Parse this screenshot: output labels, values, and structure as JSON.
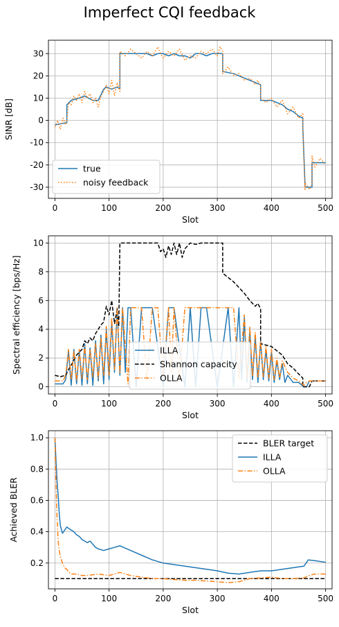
{
  "title": "Imperfect CQI feedback",
  "chart_data": [
    {
      "type": "line",
      "xlabel": "Slot",
      "ylabel": "SINR [dB]",
      "xlim": [
        -12,
        512
      ],
      "ylim": [
        -35,
        36
      ],
      "xticks": [
        0,
        100,
        200,
        300,
        400,
        500
      ],
      "yticks": [
        -30,
        -20,
        -10,
        0,
        10,
        20,
        30
      ],
      "grid": true,
      "legend": "lower-left",
      "series": [
        {
          "name": "true",
          "color": "#1f77b4",
          "style": "solid",
          "x": [
            0,
            22,
            22,
            30,
            45,
            55,
            62,
            70,
            80,
            90,
            95,
            105,
            115,
            120,
            120,
            140,
            150,
            160,
            170,
            180,
            190,
            200,
            210,
            220,
            230,
            240,
            250,
            260,
            270,
            280,
            290,
            300,
            310,
            310,
            330,
            350,
            370,
            380,
            380,
            400,
            420,
            430,
            440,
            450,
            458,
            458,
            462,
            462,
            475,
            475,
            500
          ],
          "y": [
            -2,
            -1,
            7,
            9,
            10,
            11,
            10,
            9,
            9,
            14,
            15,
            14,
            15,
            14,
            30,
            30,
            30,
            30,
            30,
            29,
            30,
            30,
            29,
            30,
            29,
            29,
            28,
            30,
            30,
            29,
            30,
            30,
            30,
            22,
            21,
            19,
            17,
            16,
            9,
            9,
            7,
            5,
            4,
            2,
            1,
            -3,
            -29,
            -30,
            -30,
            -19,
            -19
          ]
        },
        {
          "name": "noisy feedback",
          "color": "#ff7f0e",
          "style": "dotted",
          "x": [
            0,
            5,
            10,
            15,
            20,
            22,
            25,
            30,
            35,
            40,
            45,
            50,
            55,
            60,
            65,
            70,
            75,
            80,
            85,
            90,
            95,
            100,
            105,
            110,
            115,
            120,
            120,
            130,
            140,
            150,
            160,
            170,
            180,
            190,
            195,
            200,
            210,
            220,
            230,
            240,
            250,
            260,
            270,
            280,
            290,
            300,
            305,
            310,
            310,
            320,
            330,
            340,
            350,
            360,
            370,
            375,
            380,
            380,
            390,
            400,
            410,
            420,
            430,
            440,
            450,
            458,
            458,
            462,
            462,
            470,
            475,
            475,
            480,
            490,
            500
          ],
          "y": [
            -3,
            0,
            -4,
            1,
            -2,
            0,
            8,
            7,
            11,
            9,
            12,
            8,
            13,
            10,
            12,
            8,
            10,
            6,
            11,
            13,
            16,
            12,
            18,
            11,
            17,
            13,
            31,
            29,
            32,
            30,
            28,
            31,
            29,
            33,
            30,
            28,
            31,
            29,
            32,
            27,
            29,
            28,
            31,
            30,
            32,
            29,
            33,
            31,
            21,
            24,
            20,
            21,
            18,
            19,
            16,
            18,
            15,
            10,
            8,
            10,
            6,
            9,
            3,
            6,
            1,
            3,
            -4,
            -31,
            -28,
            -31,
            -29,
            -16,
            -21,
            -17,
            -20
          ]
        }
      ]
    },
    {
      "type": "line",
      "xlabel": "Slot",
      "ylabel": "Spectral efficiency [bps/Hz]",
      "xlim": [
        -12,
        512
      ],
      "ylim": [
        -0.5,
        10.5
      ],
      "xticks": [
        0,
        100,
        200,
        300,
        400,
        500
      ],
      "yticks": [
        0,
        2,
        4,
        6,
        8,
        10
      ],
      "grid": true,
      "legend": "lower-center",
      "series": [
        {
          "name": "ILLA",
          "color": "#1f77b4",
          "style": "solid",
          "x": [
            0,
            15,
            20,
            25,
            30,
            35,
            40,
            45,
            50,
            55,
            60,
            65,
            70,
            75,
            80,
            85,
            90,
            95,
            100,
            105,
            110,
            115,
            120,
            125,
            130,
            135,
            140,
            150,
            160,
            180,
            200,
            210,
            220,
            240,
            250,
            260,
            270,
            280,
            300,
            320,
            330,
            340,
            345,
            350,
            355,
            360,
            365,
            370,
            375,
            380,
            385,
            390,
            395,
            400,
            405,
            410,
            415,
            420,
            425,
            430,
            440,
            450,
            460,
            465,
            470,
            480,
            500
          ],
          "y": [
            0.2,
            0.2,
            0.5,
            2.5,
            0.1,
            2.6,
            0.2,
            2.5,
            0.1,
            3.0,
            0.2,
            2.7,
            0.1,
            3.2,
            0.4,
            3.6,
            0.2,
            4.0,
            0.5,
            4.5,
            1.0,
            5.5,
            0.8,
            5.5,
            1.0,
            5.5,
            5.5,
            0.0,
            5.5,
            5.5,
            0.0,
            5.5,
            5.5,
            0.0,
            5.5,
            0.0,
            5.5,
            5.5,
            0.0,
            5.5,
            0.0,
            5.5,
            0.5,
            4.8,
            0.3,
            3.8,
            0.5,
            3.5,
            0.3,
            3.2,
            0.5,
            2.6,
            0.4,
            2.4,
            0.3,
            1.8,
            0.5,
            1.6,
            0.3,
            0.8,
            0.3,
            0.3,
            0.0,
            0.0,
            0.4,
            0.4,
            0.4
          ]
        },
        {
          "name": "Shannon capacity",
          "color": "#000000",
          "style": "dashed",
          "x": [
            0,
            10,
            20,
            25,
            30,
            40,
            50,
            55,
            60,
            65,
            70,
            75,
            80,
            85,
            90,
            95,
            100,
            105,
            110,
            115,
            118,
            120,
            140,
            160,
            180,
            190,
            195,
            200,
            205,
            210,
            215,
            220,
            225,
            230,
            235,
            240,
            250,
            260,
            270,
            280,
            290,
            300,
            310,
            310,
            330,
            350,
            360,
            370,
            375,
            380,
            380,
            400,
            410,
            420,
            430,
            440,
            450,
            458,
            458,
            470,
            475,
            500
          ],
          "y": [
            0.8,
            0.7,
            0.8,
            1.2,
            1.5,
            2.2,
            2.6,
            3.2,
            3.0,
            3.4,
            3.2,
            3.7,
            4.0,
            4.3,
            4.5,
            5.6,
            5.0,
            6.0,
            4.4,
            5.4,
            4.2,
            10,
            10,
            10,
            10,
            10,
            9.4,
            9.6,
            9.0,
            9.8,
            9.2,
            10,
            9.2,
            10,
            9.0,
            9.6,
            10,
            9.9,
            10,
            10,
            10,
            10,
            10,
            7.9,
            7.3,
            6.5,
            6.0,
            5.6,
            5.8,
            5.4,
            3.0,
            2.8,
            2.5,
            2.2,
            1.6,
            1.3,
            0.9,
            0.6,
            0.0,
            0.0,
            0.4,
            0.4
          ]
        },
        {
          "name": "OLLA",
          "color": "#ff7f0e",
          "style": "dashdot",
          "x": [
            0,
            15,
            20,
            25,
            30,
            35,
            40,
            45,
            50,
            55,
            60,
            65,
            70,
            75,
            80,
            85,
            90,
            95,
            100,
            105,
            110,
            115,
            120,
            125,
            135,
            140,
            150,
            160,
            170,
            180,
            190,
            200,
            210,
            215,
            220,
            230,
            240,
            250,
            260,
            270,
            280,
            300,
            320,
            330,
            340,
            350,
            355,
            360,
            365,
            370,
            375,
            380,
            385,
            390,
            395,
            400,
            405,
            410,
            415,
            420,
            430,
            440,
            450,
            460,
            465,
            470,
            500
          ],
          "y": [
            0.4,
            0.4,
            0.8,
            2.6,
            0.5,
            2.5,
            0.4,
            2.6,
            0.6,
            2.8,
            0.5,
            2.6,
            0.7,
            3.0,
            0.6,
            3.4,
            0.8,
            4.2,
            0.8,
            4.8,
            1.2,
            5.5,
            1.0,
            5.5,
            0.2,
            5.5,
            5.5,
            5.5,
            0.4,
            5.5,
            5.5,
            0.6,
            5.5,
            1.0,
            5.5,
            0.5,
            5.5,
            5.5,
            5.5,
            5.5,
            5.5,
            5.5,
            5.5,
            5.5,
            0.6,
            5.0,
            0.6,
            4.2,
            0.7,
            3.8,
            0.6,
            3.2,
            0.7,
            2.8,
            0.6,
            2.6,
            0.5,
            2.0,
            0.6,
            1.8,
            1.0,
            0.6,
            0.4,
            0.1,
            0.3,
            0.4,
            0.4
          ]
        }
      ]
    },
    {
      "type": "line",
      "xlabel": "Slot",
      "ylabel": "Achieved BLER",
      "xlim": [
        -12,
        512
      ],
      "ylim": [
        0.035,
        1.045
      ],
      "xticks": [
        0,
        100,
        200,
        300,
        400,
        500
      ],
      "yticks": [
        0.2,
        0.4,
        0.6,
        0.8,
        1.0
      ],
      "grid": true,
      "legend": "upper-right",
      "series": [
        {
          "name": "BLER target",
          "color": "#000000",
          "style": "dashed",
          "x": [
            0,
            500
          ],
          "y": [
            0.1,
            0.1
          ]
        },
        {
          "name": "ILLA",
          "color": "#1f77b4",
          "style": "solid",
          "x": [
            0,
            2,
            4,
            6,
            8,
            10,
            14,
            18,
            22,
            26,
            30,
            35,
            40,
            45,
            50,
            55,
            60,
            65,
            70,
            75,
            80,
            90,
            100,
            110,
            120,
            140,
            160,
            180,
            200,
            220,
            240,
            260,
            280,
            300,
            320,
            340,
            360,
            380,
            400,
            420,
            440,
            460,
            468,
            480,
            500
          ],
          "y": [
            1.0,
            0.85,
            0.72,
            0.63,
            0.52,
            0.44,
            0.39,
            0.41,
            0.43,
            0.42,
            0.41,
            0.4,
            0.38,
            0.37,
            0.35,
            0.34,
            0.33,
            0.34,
            0.32,
            0.3,
            0.29,
            0.28,
            0.29,
            0.3,
            0.31,
            0.28,
            0.25,
            0.22,
            0.2,
            0.19,
            0.18,
            0.17,
            0.16,
            0.15,
            0.135,
            0.13,
            0.14,
            0.15,
            0.15,
            0.16,
            0.17,
            0.18,
            0.22,
            0.215,
            0.205
          ]
        },
        {
          "name": "OLLA",
          "color": "#ff7f0e",
          "style": "dashdot",
          "x": [
            0,
            2,
            4,
            6,
            8,
            10,
            14,
            18,
            22,
            26,
            30,
            40,
            50,
            60,
            80,
            100,
            120,
            140,
            160,
            180,
            200,
            220,
            240,
            260,
            280,
            300,
            320,
            340,
            360,
            380,
            400,
            420,
            440,
            460,
            470,
            480,
            500
          ],
          "y": [
            1.0,
            0.7,
            0.48,
            0.34,
            0.28,
            0.24,
            0.2,
            0.17,
            0.16,
            0.14,
            0.13,
            0.13,
            0.12,
            0.12,
            0.13,
            0.12,
            0.14,
            0.12,
            0.11,
            0.1,
            0.1,
            0.095,
            0.09,
            0.09,
            0.085,
            0.08,
            0.075,
            0.08,
            0.1,
            0.105,
            0.11,
            0.1,
            0.1,
            0.105,
            0.12,
            0.13,
            0.13
          ]
        }
      ]
    }
  ]
}
